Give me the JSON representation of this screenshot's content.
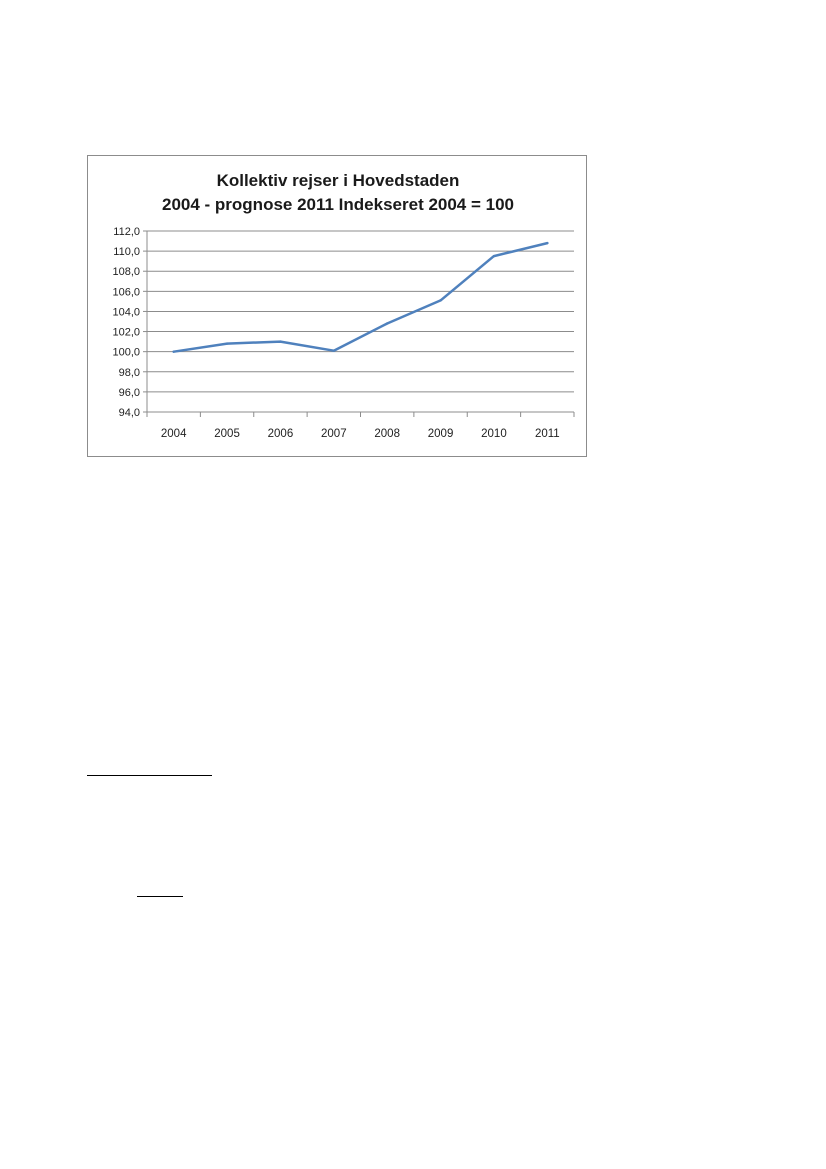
{
  "chart_data": {
    "type": "line",
    "title_lines": [
      "Kollektiv rejser i Hovedstaden",
      "2004 - prognose 2011  Indekseret 2004 = 100"
    ],
    "categories": [
      "2004",
      "2005",
      "2006",
      "2007",
      "2008",
      "2009",
      "2010",
      "2011"
    ],
    "series": [
      {
        "values": [
          100.0,
          100.8,
          101.0,
          100.1,
          102.8,
          105.1,
          109.5,
          110.8
        ]
      }
    ],
    "y_ticks": [
      "94,0",
      "96,0",
      "98,0",
      "100,0",
      "102,0",
      "104,0",
      "106,0",
      "108,0",
      "110,0",
      "112,0"
    ],
    "ylim": [
      94,
      112
    ],
    "y_step": 2,
    "grid": true,
    "legend": "none",
    "line_color": "#4f81bd",
    "grid_color": "#8c8c8c"
  }
}
